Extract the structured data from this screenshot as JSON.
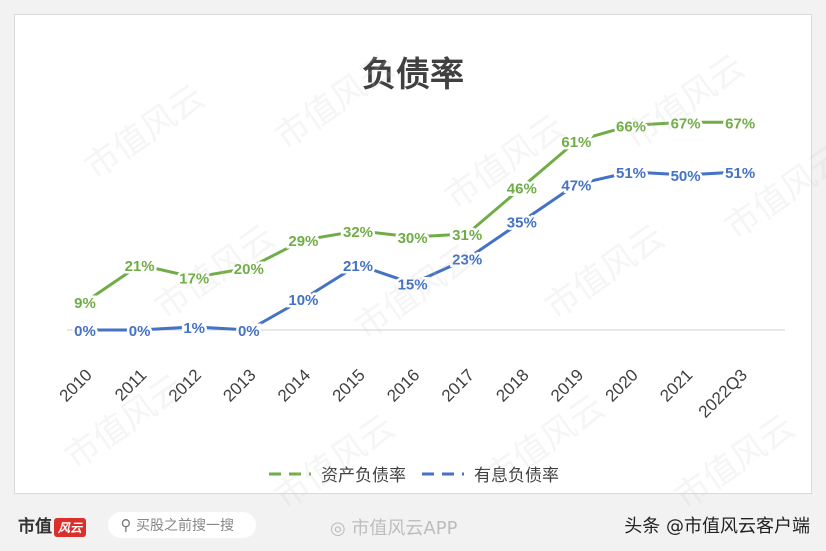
{
  "chart_data": {
    "type": "line",
    "title": "负债率",
    "categories": [
      "2010",
      "2011",
      "2012",
      "2013",
      "2014",
      "2015",
      "2016",
      "2017",
      "2018",
      "2019",
      "2020",
      "2021",
      "2022Q3"
    ],
    "series": [
      {
        "name": "资产负债率",
        "color": "#70ad47",
        "dashed_legend": true,
        "values": [
          9,
          21,
          17,
          20,
          29,
          32,
          30,
          31,
          46,
          61,
          66,
          67,
          67
        ],
        "labels": [
          "9%",
          "21%",
          "17%",
          "20%",
          "29%",
          "32%",
          "30%",
          "31%",
          "46%",
          "61%",
          "66%",
          "67%",
          "67%"
        ]
      },
      {
        "name": "有息负债率",
        "color": "#4472c4",
        "dashed_legend": true,
        "values": [
          0,
          0,
          1,
          0,
          10,
          21,
          15,
          23,
          35,
          47,
          51,
          50,
          51
        ],
        "labels": [
          "0%",
          "0%",
          "1%",
          "0%",
          "10%",
          "21%",
          "15%",
          "23%",
          "35%",
          "47%",
          "51%",
          "50%",
          "51%"
        ]
      }
    ],
    "ylim": [
      0,
      100
    ],
    "grid": false,
    "legend_position": "bottom"
  },
  "watermark": "市值风云",
  "footer": {
    "brand": "市值",
    "brand_mark": "风云",
    "search_placeholder": "买股之前搜一搜",
    "search_icon": "search-icon",
    "center_watermark": "◎ 市值风云APP",
    "account": "头条 @市值风云客户端"
  }
}
